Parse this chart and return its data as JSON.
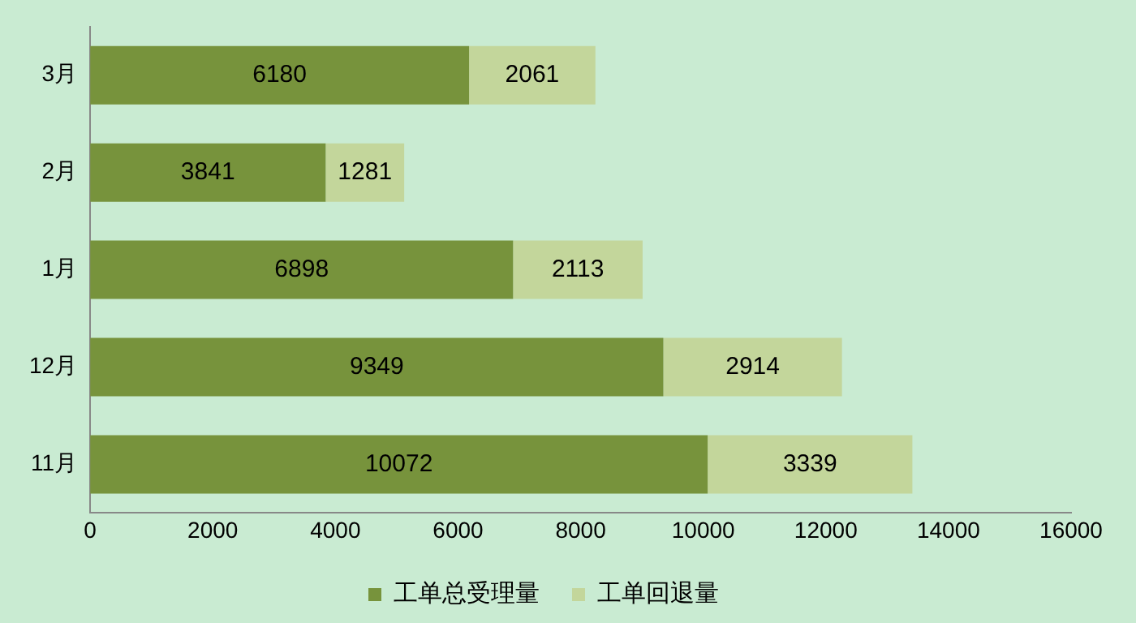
{
  "chart_data": {
    "type": "bar",
    "orientation": "horizontal",
    "stacked": true,
    "categories": [
      "3月",
      "2月",
      "1月",
      "12月",
      "11月"
    ],
    "series": [
      {
        "name": "工单总受理量",
        "color": "#77933c",
        "values": [
          6180,
          3841,
          6898,
          9349,
          10072
        ]
      },
      {
        "name": "工单回退量",
        "color": "#c3d69b",
        "values": [
          2061,
          1281,
          2113,
          2914,
          3339
        ]
      }
    ],
    "xlim": [
      0,
      16000
    ],
    "xticks": [
      0,
      2000,
      4000,
      6000,
      8000,
      10000,
      12000,
      14000,
      16000
    ],
    "grid": false,
    "legend": "bottom",
    "data_labels": true
  }
}
